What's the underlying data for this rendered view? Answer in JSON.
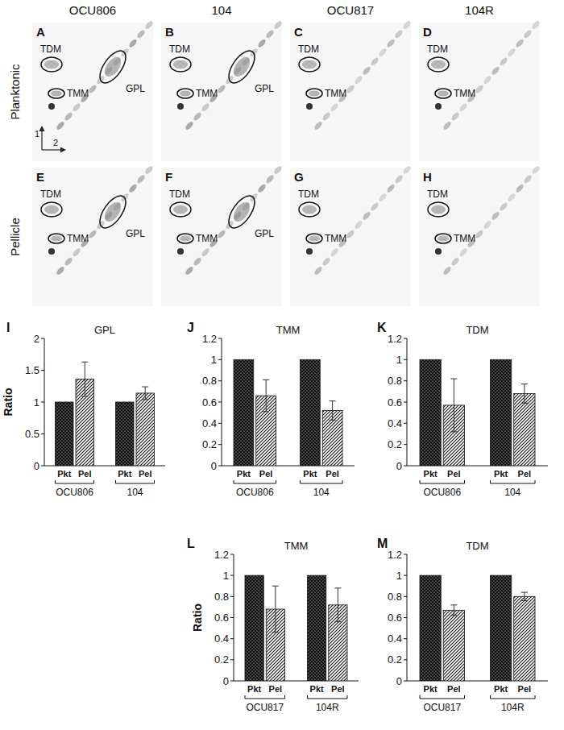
{
  "column_headers": [
    "OCU806",
    "104",
    "OCU817",
    "104R"
  ],
  "row_headers": [
    "Planktonic",
    "Pellicle"
  ],
  "axis_arrow_labels": [
    "1",
    "2"
  ],
  "tlc_panels": [
    {
      "letter": "A",
      "spots": [
        "TDM",
        "TMM",
        "GPL"
      ]
    },
    {
      "letter": "B",
      "spots": [
        "TDM",
        "TMM",
        "GPL"
      ]
    },
    {
      "letter": "C",
      "spots": [
        "TDM",
        "TMM"
      ]
    },
    {
      "letter": "D",
      "spots": [
        "TDM",
        "TMM"
      ]
    },
    {
      "letter": "E",
      "spots": [
        "TDM",
        "TMM",
        "GPL"
      ]
    },
    {
      "letter": "F",
      "spots": [
        "TDM",
        "TMM",
        "GPL"
      ]
    },
    {
      "letter": "G",
      "spots": [
        "TDM",
        "TMM"
      ]
    },
    {
      "letter": "H",
      "spots": [
        "TDM",
        "TMM"
      ]
    }
  ],
  "chart_data": [
    {
      "type": "bar",
      "panel_label": "I",
      "title": "GPL",
      "ylabel": "Ratio",
      "categories": [
        "OCU806",
        "104"
      ],
      "series": [
        {
          "name": "Pkt",
          "color": "#111111",
          "values": [
            1,
            1
          ]
        },
        {
          "name": "Pel",
          "color": "#111111",
          "values": [
            1.36,
            1.14
          ],
          "errors": [
            0.27,
            0.1
          ]
        }
      ],
      "ylim": [
        0,
        2
      ],
      "yticks": [
        0,
        0.5,
        1,
        1.5,
        2
      ]
    },
    {
      "type": "bar",
      "panel_label": "J",
      "title": "TMM",
      "categories": [
        "OCU806",
        "104"
      ],
      "series": [
        {
          "name": "Pkt",
          "color": "#111111",
          "values": [
            1,
            1
          ]
        },
        {
          "name": "Pel",
          "color": "#111111",
          "values": [
            0.66,
            0.52
          ],
          "errors": [
            0.15,
            0.09
          ]
        }
      ],
      "ylim": [
        0,
        1.2
      ],
      "yticks": [
        0,
        0.2,
        0.4,
        0.6,
        0.8,
        1,
        1.2
      ]
    },
    {
      "type": "bar",
      "panel_label": "K",
      "title": "TDM",
      "categories": [
        "OCU806",
        "104"
      ],
      "series": [
        {
          "name": "Pkt",
          "color": "#111111",
          "values": [
            1,
            1
          ]
        },
        {
          "name": "Pel",
          "color": "#111111",
          "values": [
            0.57,
            0.68
          ],
          "errors": [
            0.25,
            0.09
          ]
        }
      ],
      "ylim": [
        0,
        1.2
      ],
      "yticks": [
        0,
        0.2,
        0.4,
        0.6,
        0.8,
        1,
        1.2
      ]
    },
    {
      "type": "bar",
      "panel_label": "L",
      "title": "TMM",
      "ylabel": "Ratio",
      "categories": [
        "OCU817",
        "104R"
      ],
      "series": [
        {
          "name": "Pkt",
          "color": "#111111",
          "values": [
            1,
            1
          ]
        },
        {
          "name": "Pel",
          "color": "#111111",
          "values": [
            0.68,
            0.72
          ],
          "errors": [
            0.22,
            0.16
          ]
        }
      ],
      "ylim": [
        0,
        1.2
      ],
      "yticks": [
        0,
        0.2,
        0.4,
        0.6,
        0.8,
        1,
        1.2
      ]
    },
    {
      "type": "bar",
      "panel_label": "M",
      "title": "TDM",
      "categories": [
        "OCU817",
        "104R"
      ],
      "series": [
        {
          "name": "Pkt",
          "color": "#111111",
          "values": [
            1,
            1
          ]
        },
        {
          "name": "Pel",
          "color": "#111111",
          "values": [
            0.67,
            0.8
          ],
          "errors": [
            0.05,
            0.04
          ]
        }
      ],
      "ylim": [
        0,
        1.2
      ],
      "yticks": [
        0,
        0.2,
        0.4,
        0.6,
        0.8,
        1,
        1.2
      ]
    }
  ]
}
